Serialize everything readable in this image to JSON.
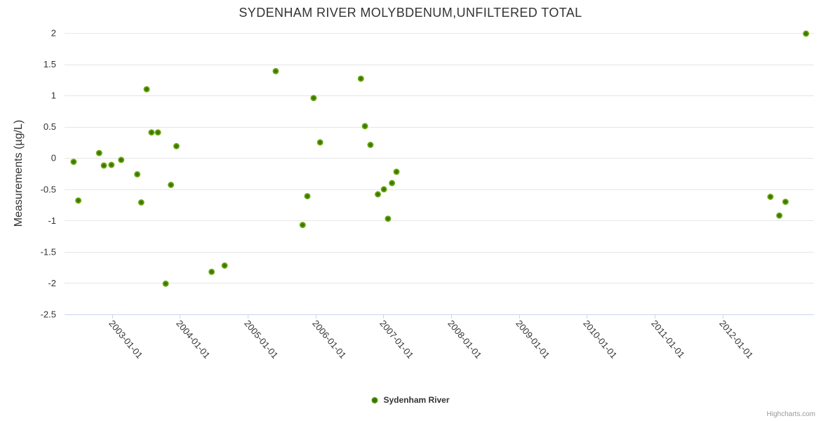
{
  "chart": {
    "title": "SYDENHAM RIVER MOLYBDENUM,UNFILTERED TOTAL",
    "y_axis_title": "Measurements (µg/L)",
    "legend_label": "Sydenham River",
    "credits": "Highcharts.com"
  },
  "colors": {
    "text": "#333333",
    "grid": "#e6e6e6",
    "axis_line": "#ccd6eb",
    "credits": "#999999",
    "marker_inner": "#2e6c04",
    "marker_mid": "#417f06",
    "marker_outer": "#85bb1a"
  },
  "chart_data": {
    "type": "scatter",
    "title": "SYDENHAM RIVER MOLYBDENUM,UNFILTERED TOTAL",
    "xlabel": "",
    "ylabel": "Measurements (µg/L)",
    "grid": "horizontal",
    "legend_position": "bottom-center",
    "xlim_decimal_years": [
      2002.3,
      2013.35
    ],
    "ylim": [
      -2.5,
      2
    ],
    "x_tick_labels": [
      "2003-01-01",
      "2004-01-01",
      "2005-01-01",
      "2006-01-01",
      "2007-01-01",
      "2008-01-01",
      "2009-01-01",
      "2010-01-01",
      "2011-01-01",
      "2012-01-01"
    ],
    "y_tick_labels": [
      "2",
      "1.5",
      "1",
      "0.5",
      "0",
      "-0.5",
      "-1",
      "-1.5",
      "-2",
      "-2.5"
    ],
    "y_tick_values": [
      2,
      1.5,
      1,
      0.5,
      0,
      -0.5,
      -1,
      -1.5,
      -2,
      -2.5
    ],
    "series": [
      {
        "name": "Sydenham River",
        "marker": "circle",
        "points": [
          {
            "date": "2002-06-07",
            "value": -0.06
          },
          {
            "date": "2002-07-02",
            "value": -0.68
          },
          {
            "date": "2002-10-23",
            "value": 0.08
          },
          {
            "date": "2002-11-18",
            "value": -0.12
          },
          {
            "date": "2002-12-28",
            "value": -0.11
          },
          {
            "date": "2003-02-20",
            "value": -0.03
          },
          {
            "date": "2003-05-15",
            "value": -0.26
          },
          {
            "date": "2003-06-06",
            "value": -0.71
          },
          {
            "date": "2003-07-05",
            "value": 1.1
          },
          {
            "date": "2003-07-31",
            "value": 0.41
          },
          {
            "date": "2003-09-05",
            "value": 0.41
          },
          {
            "date": "2003-10-16",
            "value": -2.01
          },
          {
            "date": "2003-11-14",
            "value": -0.43
          },
          {
            "date": "2003-12-13",
            "value": 0.19
          },
          {
            "date": "2004-06-20",
            "value": -1.82
          },
          {
            "date": "2004-08-29",
            "value": -1.72
          },
          {
            "date": "2005-05-30",
            "value": 1.39
          },
          {
            "date": "2005-10-23",
            "value": -1.07
          },
          {
            "date": "2005-11-18",
            "value": -0.61
          },
          {
            "date": "2005-12-21",
            "value": 0.96
          },
          {
            "date": "2006-01-26",
            "value": 0.25
          },
          {
            "date": "2006-09-02",
            "value": 1.27
          },
          {
            "date": "2006-09-24",
            "value": 0.51
          },
          {
            "date": "2006-10-23",
            "value": 0.21
          },
          {
            "date": "2006-12-02",
            "value": -0.58
          },
          {
            "date": "2007-01-04",
            "value": -0.5
          },
          {
            "date": "2007-01-26",
            "value": -0.97
          },
          {
            "date": "2007-02-17",
            "value": -0.4
          },
          {
            "date": "2007-03-11",
            "value": -0.22
          },
          {
            "date": "2012-09-16",
            "value": -0.62
          },
          {
            "date": "2012-11-03",
            "value": -0.92
          },
          {
            "date": "2012-12-06",
            "value": -0.7
          },
          {
            "date": "2013-03-25",
            "value": 1.99
          }
        ]
      }
    ]
  }
}
